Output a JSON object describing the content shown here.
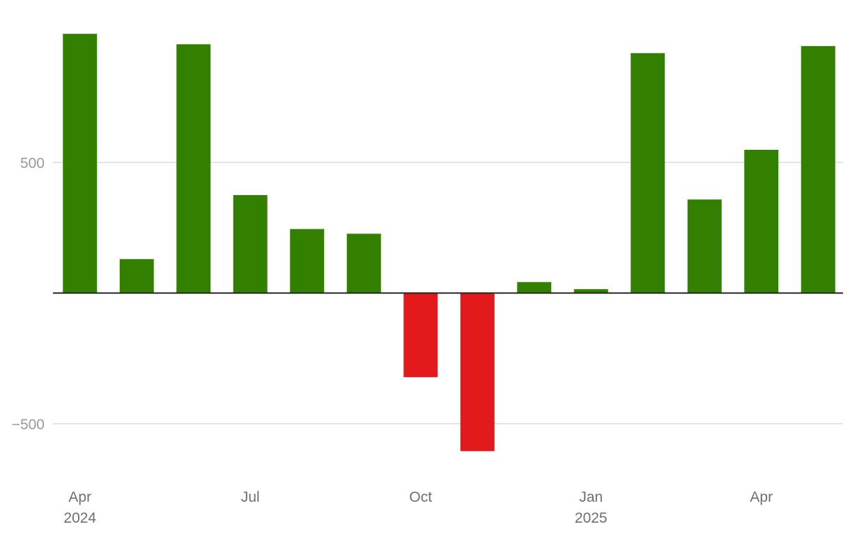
{
  "chart_data": {
    "type": "bar",
    "categories": [
      "2024-04",
      "2024-05",
      "2024-06",
      "2024-07",
      "2024-08",
      "2024-09",
      "2024-10",
      "2024-11",
      "2024-12",
      "2025-01",
      "2025-02",
      "2025-03",
      "2025-04",
      "2025-05"
    ],
    "values": [
      992,
      130,
      952,
      375,
      245,
      227,
      -322,
      -605,
      42,
      15,
      918,
      358,
      548,
      945
    ],
    "ylim": [
      -680,
      1000
    ],
    "yticks": [
      -500,
      500
    ],
    "ytick_labels": [
      "−500",
      "500"
    ],
    "xticks": [
      {
        "category": "2024-04",
        "label": "Apr",
        "sublabel": "2024"
      },
      {
        "category": "2024-07",
        "label": "Jul",
        "sublabel": ""
      },
      {
        "category": "2024-10",
        "label": "Oct",
        "sublabel": ""
      },
      {
        "category": "2025-01",
        "label": "Jan",
        "sublabel": "2025"
      },
      {
        "category": "2025-04",
        "label": "Apr",
        "sublabel": ""
      }
    ],
    "grid": true,
    "colors": {
      "positive": "#338000",
      "negative": "#e31a1c"
    }
  }
}
